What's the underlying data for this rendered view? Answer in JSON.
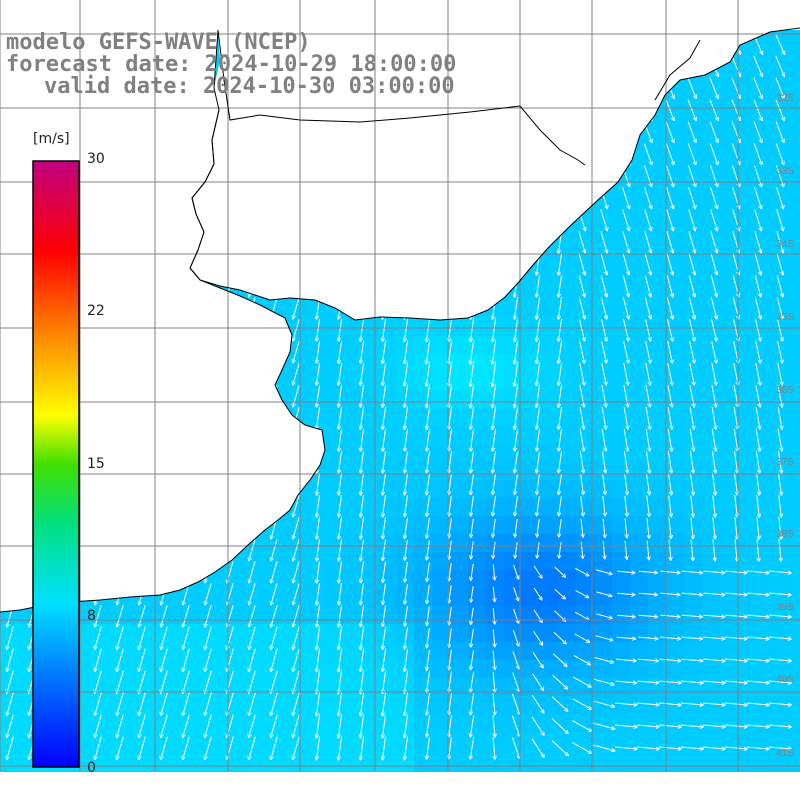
{
  "title": {
    "model": "modelo GEFS-WAVE (NCEP)",
    "forecast": "forecast date: 2024-10-29 18:00:00",
    "valid": "valid date: 2024-10-30 03:00:00"
  },
  "colorbar": {
    "unit": "[m/s]",
    "ticks": [
      "30",
      "22",
      "15",
      "8",
      "0"
    ],
    "tick_values": [
      30,
      22,
      15,
      8,
      0
    ],
    "range": [
      0,
      30
    ],
    "colors": [
      "#0000ff",
      "#00c8ff",
      "#00ff80",
      "#ffff00",
      "#ff8000",
      "#ff0000",
      "#c80080"
    ]
  },
  "map": {
    "land_color": "#ffffff",
    "coast_color": "#000000",
    "grid_color": "#808080",
    "lat_labels": [
      "32S",
      "33S",
      "34S",
      "35S",
      "36S",
      "37S",
      "38S",
      "39S",
      "40S",
      "41S"
    ]
  },
  "chart_data": {
    "type": "heatmap",
    "variable": "wind speed with direction arrows",
    "unit": "m/s",
    "value_range": [
      0,
      30
    ],
    "field_range_observed": [
      3,
      9
    ],
    "dominant_direction": "arrows point south / south-southwest in north and west, east in south-east",
    "calm_zone": "low wind (~3-4 m/s) centered offshore south-east of the estuary"
  }
}
